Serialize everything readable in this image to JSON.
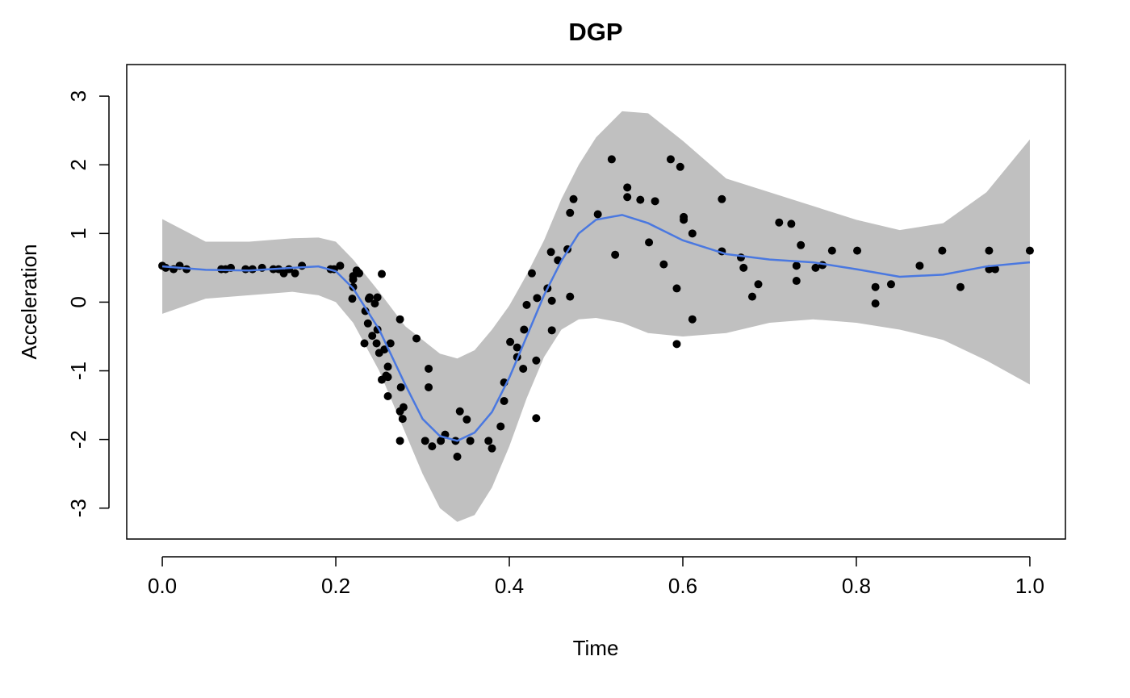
{
  "chart_data": {
    "type": "scatter",
    "title": "DGP",
    "x_label": "Time",
    "y_label": "Acceleration",
    "xlim": [
      -0.041,
      1.041
    ],
    "ylim": [
      -3.45,
      3.46
    ],
    "xticks": [
      {
        "value": 0,
        "label": "0.0"
      },
      0.2,
      0.4,
      0.6,
      0.8,
      {
        "value": 1,
        "label": "1.0"
      }
    ],
    "yticks": [
      -3,
      -2,
      -1,
      0,
      1,
      2,
      3
    ],
    "points": {
      "color": "#000000",
      "x": [
        0,
        0.004,
        0.013,
        0.02,
        0.028,
        0.068,
        0.073,
        0.079,
        0.096,
        0.104,
        0.115,
        0.128,
        0.134,
        0.14,
        0.146,
        0.153,
        0.161,
        0.194,
        0.198,
        0.205,
        0.22,
        0.22,
        0.22,
        0.224,
        0.219,
        0.227,
        0.234,
        0.233,
        0.237,
        0.238,
        0.239,
        0.242,
        0.245,
        0.247,
        0.248,
        0.248,
        0.25,
        0.253,
        0.256,
        0.26,
        0.26,
        0.26,
        0.258,
        0.253,
        0.263,
        0.274,
        0.275,
        0.274,
        0.277,
        0.278,
        0.274,
        0.293,
        0.303,
        0.307,
        0.307,
        0.311,
        0.321,
        0.326,
        0.338,
        0.343,
        0.34,
        0.351,
        0.355,
        0.376,
        0.38,
        0.39,
        0.394,
        0.394,
        0.401,
        0.409,
        0.409,
        0.416,
        0.417,
        0.42,
        0.426,
        0.431,
        0.431,
        0.432,
        0.444,
        0.448,
        0.449,
        0.449,
        0.456,
        0.467,
        0.47,
        0.47,
        0.474,
        0.502,
        0.518,
        0.522,
        0.536,
        0.536,
        0.551,
        0.561,
        0.568,
        0.578,
        0.586,
        0.593,
        0.597,
        0.593,
        0.601,
        0.601,
        0.611,
        0.611,
        0.645,
        0.645,
        0.667,
        0.67,
        0.68,
        0.687,
        0.711,
        0.725,
        0.731,
        0.731,
        0.736,
        0.753,
        0.761,
        0.772,
        0.801,
        0.822,
        0.822,
        0.84,
        0.873,
        0.899,
        0.92,
        0.953,
        0.953,
        0.96,
        1.0
      ],
      "y": [
        0.53,
        0.5,
        0.48,
        0.53,
        0.48,
        0.48,
        0.48,
        0.5,
        0.48,
        0.48,
        0.5,
        0.48,
        0.48,
        0.42,
        0.48,
        0.42,
        0.53,
        0.48,
        0.48,
        0.53,
        0.38,
        0.33,
        0.22,
        0.46,
        0.05,
        0.42,
        -0.13,
        -0.6,
        -0.31,
        0.05,
        0.07,
        -0.49,
        -0.02,
        -0.6,
        -0.4,
        0.07,
        -0.74,
        -1.13,
        -0.69,
        -0.94,
        -1.09,
        -1.37,
        -1.07,
        0.41,
        -0.6,
        -0.25,
        -1.24,
        -1.59,
        -1.7,
        -1.53,
        -2.02,
        -0.53,
        -2.02,
        -0.97,
        -1.24,
        -2.1,
        -2.02,
        -1.93,
        -2.02,
        -1.59,
        -2.25,
        -1.71,
        -2.02,
        -2.02,
        -2.13,
        -1.81,
        -1.44,
        -1.17,
        -0.58,
        -0.66,
        -0.8,
        -0.97,
        -0.4,
        -0.04,
        0.42,
        -0.85,
        -1.69,
        0.06,
        0.2,
        0.73,
        -0.41,
        0.02,
        0.61,
        0.77,
        1.3,
        0.08,
        1.5,
        1.28,
        2.08,
        0.69,
        1.67,
        1.53,
        1.49,
        0.87,
        1.47,
        0.55,
        2.08,
        0.2,
        1.97,
        -0.61,
        1.2,
        1.24,
        1.0,
        -0.25,
        0.74,
        1.5,
        0.65,
        0.5,
        0.08,
        0.26,
        1.16,
        1.14,
        0.31,
        0.53,
        0.83,
        0.5,
        0.54,
        0.75,
        0.75,
        0.22,
        -0.02,
        0.26,
        0.53,
        0.75,
        0.22,
        0.75,
        0.48,
        0.48,
        0.75
      ]
    },
    "fit": {
      "color": "#4a78e0",
      "band_color": "#c0c0c0",
      "x": [
        0,
        0.05,
        0.1,
        0.15,
        0.18,
        0.2,
        0.22,
        0.25,
        0.28,
        0.3,
        0.32,
        0.34,
        0.36,
        0.38,
        0.4,
        0.42,
        0.44,
        0.46,
        0.48,
        0.5,
        0.53,
        0.56,
        0.6,
        0.65,
        0.7,
        0.75,
        0.8,
        0.85,
        0.9,
        0.95,
        1
      ],
      "y": [
        0.52,
        0.47,
        0.46,
        0.5,
        0.52,
        0.45,
        0.2,
        -0.4,
        -1.2,
        -1.7,
        -1.95,
        -2.02,
        -1.9,
        -1.6,
        -1.1,
        -0.5,
        0.1,
        0.6,
        1.0,
        1.2,
        1.27,
        1.15,
        0.9,
        0.7,
        0.62,
        0.58,
        0.48,
        0.37,
        0.4,
        0.52,
        0.58
      ],
      "lower": [
        -0.17,
        0.05,
        0.1,
        0.15,
        0.1,
        0,
        -0.3,
        -1.0,
        -1.9,
        -2.5,
        -3.0,
        -3.2,
        -3.1,
        -2.7,
        -2.1,
        -1.4,
        -0.8,
        -0.4,
        -0.25,
        -0.23,
        -0.3,
        -0.45,
        -0.5,
        -0.45,
        -0.3,
        -0.25,
        -0.3,
        -0.4,
        -0.55,
        -0.85,
        -1.2
      ],
      "upper": [
        1.21,
        0.88,
        0.88,
        0.93,
        0.94,
        0.88,
        0.62,
        0.15,
        -0.35,
        -0.55,
        -0.75,
        -0.82,
        -0.7,
        -0.4,
        -0.05,
        0.4,
        0.9,
        1.5,
        2.0,
        2.4,
        2.78,
        2.75,
        2.35,
        1.8,
        1.6,
        1.4,
        1.2,
        1.05,
        1.15,
        1.6,
        2.37
      ]
    }
  }
}
